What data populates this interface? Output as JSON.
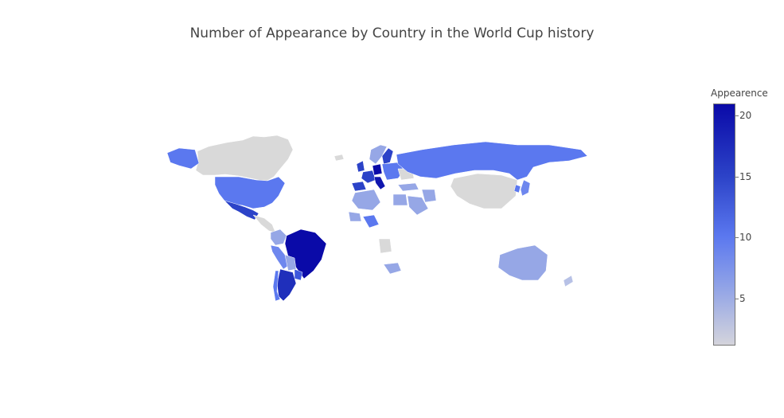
{
  "title": "Number of Appearance by Country in the World Cup history",
  "colorbar": {
    "title": "Appearence",
    "min": 1,
    "max": 21,
    "ticks": [
      {
        "value": 20,
        "label": "20"
      },
      {
        "value": 15,
        "label": "15"
      },
      {
        "value": 10,
        "label": "10"
      },
      {
        "value": 5,
        "label": "5"
      }
    ],
    "colors": {
      "low": "#d4d4dc",
      "mid_low": "#96a7e6",
      "mid": "#5b78ef",
      "mid_high": "#2c43c8",
      "high": "#0a0aa8"
    }
  },
  "chart_data": {
    "type": "choropleth",
    "title": "Number of Appearance by Country in the World Cup history",
    "colorbar_title": "Appearence",
    "range": [
      1,
      21
    ],
    "values": [
      {
        "country": "Brazil",
        "value": 21
      },
      {
        "country": "Germany",
        "value": 19
      },
      {
        "country": "Italy",
        "value": 18
      },
      {
        "country": "Argentina",
        "value": 17
      },
      {
        "country": "Mexico",
        "value": 16
      },
      {
        "country": "England",
        "value": 15
      },
      {
        "country": "France",
        "value": 15
      },
      {
        "country": "Spain",
        "value": 15
      },
      {
        "country": "Belgium",
        "value": 13
      },
      {
        "country": "Uruguay",
        "value": 13
      },
      {
        "country": "Sweden",
        "value": 12
      },
      {
        "country": "Switzerland",
        "value": 11
      },
      {
        "country": "Russia",
        "value": 11
      },
      {
        "country": "United States",
        "value": 10
      },
      {
        "country": "Netherlands",
        "value": 10
      },
      {
        "country": "South Korea",
        "value": 10
      },
      {
        "country": "Chile",
        "value": 9
      },
      {
        "country": "Paraguay",
        "value": 8
      },
      {
        "country": "Colombia",
        "value": 6
      },
      {
        "country": "Japan",
        "value": 6
      },
      {
        "country": "Cameroon",
        "value": 7
      },
      {
        "country": "Nigeria",
        "value": 6
      },
      {
        "country": "Poland",
        "value": 8
      },
      {
        "country": "Australia",
        "value": 5
      },
      {
        "country": "Algeria",
        "value": 4
      },
      {
        "country": "Saudi Arabia",
        "value": 5
      },
      {
        "country": "Iran",
        "value": 5
      },
      {
        "country": "Ecuador",
        "value": 4
      },
      {
        "country": "Peru",
        "value": 5
      },
      {
        "country": "Norway",
        "value": 3
      },
      {
        "country": "South Africa",
        "value": 3
      },
      {
        "country": "Egypt",
        "value": 3
      },
      {
        "country": "New Zealand",
        "value": 2
      },
      {
        "country": "Canada",
        "value": 1
      },
      {
        "country": "China",
        "value": 1
      },
      {
        "country": "Angola",
        "value": 1
      },
      {
        "country": "Ukraine",
        "value": 1
      },
      {
        "country": "Senegal",
        "value": 2
      }
    ]
  }
}
